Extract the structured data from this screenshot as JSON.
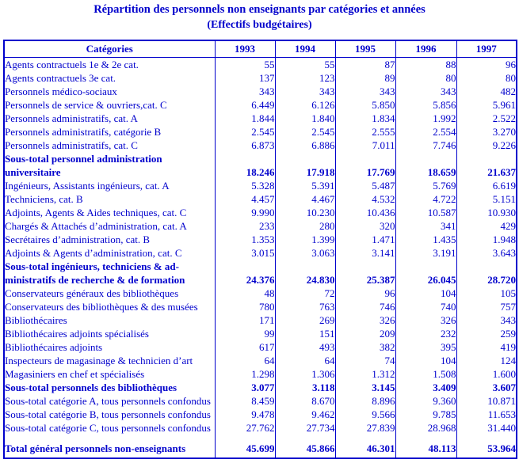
{
  "title": "Répartition des personnels non enseignants par catégories et années",
  "subtitle": "(Effectifs budgétaires)",
  "colors": {
    "text": "#0000CC",
    "border": "#0000CC",
    "background": "#FFFFFF"
  },
  "table": {
    "header": {
      "category_label": "Catégories",
      "years": [
        "1993",
        "1994",
        "1995",
        "1996",
        "1997"
      ]
    },
    "rows": [
      {
        "label": "Agents contractuels 1e & 2e cat.",
        "values": [
          "55",
          "55",
          "87",
          "88",
          "96"
        ],
        "style": "normal"
      },
      {
        "label": "Agents contractuels 3e cat.",
        "values": [
          "137",
          "123",
          "89",
          "80",
          "80"
        ],
        "style": "normal"
      },
      {
        "label": "Personnels médico-sociaux",
        "values": [
          "343",
          "343",
          "343",
          "343",
          "482"
        ],
        "style": "normal"
      },
      {
        "label": "Personnels de service & ouvriers,cat. C",
        "values": [
          "6.449",
          "6.126",
          "5.850",
          "5.856",
          "5.961"
        ],
        "style": "normal"
      },
      {
        "label": "Personnels administratifs, cat. A",
        "values": [
          "1.844",
          "1.840",
          "1.834",
          "1.992",
          "2.522"
        ],
        "style": "normal"
      },
      {
        "label": "Personnels administratifs, catégorie B",
        "values": [
          "2.545",
          "2.545",
          "2.555",
          "2.554",
          "3.270"
        ],
        "style": "normal"
      },
      {
        "label": "Personnels administratifs, cat. C",
        "values": [
          "6.873",
          "6.886",
          "7.011",
          "7.746",
          "9.226"
        ],
        "style": "normal"
      },
      {
        "label_lines": [
          "Sous-total personnel administration",
          "universitaire"
        ],
        "values": [
          "18.246",
          "17.918",
          "17.769",
          "18.659",
          "21.637"
        ],
        "style": "subtotal2"
      },
      {
        "label": "Ingénieurs, Assistants ingénieurs, cat. A",
        "values": [
          "5.328",
          "5.391",
          "5.487",
          "5.769",
          "6.619"
        ],
        "style": "normal"
      },
      {
        "label": "Techniciens, cat. B",
        "values": [
          "4.457",
          "4.467",
          "4.532",
          "4.722",
          "5.151"
        ],
        "style": "normal"
      },
      {
        "label": "Adjoints, Agents & Aides techniques, cat. C",
        "values": [
          "9.990",
          "10.230",
          "10.436",
          "10.587",
          "10.930"
        ],
        "style": "normal"
      },
      {
        "label": "Chargés & Attachés d’administration, cat. A",
        "values": [
          "233",
          "280",
          "320",
          "341",
          "429"
        ],
        "style": "normal"
      },
      {
        "label": "Secrétaires d’administration, cat. B",
        "values": [
          "1.353",
          "1.399",
          "1.471",
          "1.435",
          "1.948"
        ],
        "style": "normal"
      },
      {
        "label": "Adjoints & Agents d’administration, cat. C",
        "values": [
          "3.015",
          "3.063",
          "3.141",
          "3.191",
          "3.643"
        ],
        "style": "normal"
      },
      {
        "label_lines": [
          "Sous-total ingénieurs, techniciens & ad-",
          "ministratifs de recherche & de formation"
        ],
        "values": [
          "24.376",
          "24.830",
          "25.387",
          "26.045",
          "28.720"
        ],
        "style": "subtotal2"
      },
      {
        "label": "Conservateurs généraux des bibliothèques",
        "values": [
          "48",
          "72",
          "96",
          "104",
          "105"
        ],
        "style": "normal"
      },
      {
        "label": "Conservateurs des bibliothèques & des musées",
        "values": [
          "780",
          "763",
          "746",
          "740",
          "757"
        ],
        "style": "normal"
      },
      {
        "label": "Bibliothécaires",
        "values": [
          "171",
          "269",
          "326",
          "326",
          "343"
        ],
        "style": "normal"
      },
      {
        "label": "Bibliothécaires adjoints spécialisés",
        "values": [
          "99",
          "151",
          "209",
          "232",
          "259"
        ],
        "style": "normal"
      },
      {
        "label": "Bibliothécaires adjoints",
        "values": [
          "617",
          "493",
          "382",
          "395",
          "419"
        ],
        "style": "normal"
      },
      {
        "label": "Inspecteurs de magasinage & technicien d’art",
        "values": [
          "64",
          "64",
          "74",
          "104",
          "124"
        ],
        "style": "normal"
      },
      {
        "label": "Magasiniers en chef et spécialisés",
        "values": [
          "1.298",
          "1.306",
          "1.312",
          "1.508",
          "1.600"
        ],
        "style": "normal"
      },
      {
        "label": "Sous-total personnels des bibliothèques",
        "values": [
          "3.077",
          "3.118",
          "3.145",
          "3.409",
          "3.607"
        ],
        "style": "subtotal"
      },
      {
        "label": "Sous-total catégorie A, tous personnels confondus",
        "values": [
          "8.459",
          "8.670",
          "8.896",
          "9.360",
          "10.871"
        ],
        "style": "normal"
      },
      {
        "label": "Sous-total catégorie B, tous personnels confondus",
        "values": [
          "9.478",
          "9.462",
          "9.566",
          "9.785",
          "11.653"
        ],
        "style": "normal"
      },
      {
        "label": "Sous-total catégorie C, tous personnels confondus",
        "values": [
          "27.762",
          "27.734",
          "27.839",
          "28.968",
          "31.440"
        ],
        "style": "normal"
      },
      {
        "label": "Total général personnels non-enseignants",
        "values": [
          "45.699",
          "45.866",
          "46.301",
          "48.113",
          "53.964"
        ],
        "style": "total"
      }
    ]
  }
}
